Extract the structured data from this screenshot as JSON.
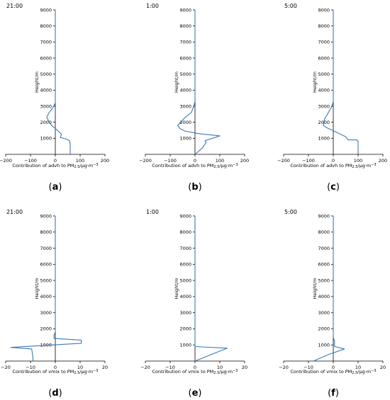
{
  "chart_data": [
    {
      "type": "line",
      "time_label": "21:00",
      "panel_label": "(a)",
      "xlabel": "Contribution of advh to PM",
      "xlabel_sub": "2.5",
      "xlabel_unit": "/µg·m",
      "xlabel_sup": "−3",
      "ylabel": "Height/m",
      "xlim": [
        -200,
        200
      ],
      "ylim": [
        0,
        9000
      ],
      "xticks": [
        "−200",
        "−100",
        "0",
        "100",
        "200"
      ],
      "yticks": [
        "1000",
        "2000",
        "3000",
        "4000",
        "5000",
        "6000",
        "7000",
        "8000",
        "9000"
      ],
      "grid": false,
      "series": [
        {
          "x": [
            60,
            60,
            57,
            45,
            20,
            25,
            5,
            -15,
            -35,
            -25,
            -10,
            0,
            0,
            0,
            0,
            0,
            0
          ],
          "y": [
            0,
            650,
            850,
            950,
            1050,
            1250,
            1550,
            1800,
            2300,
            2600,
            2900,
            3200,
            4000,
            5000,
            6000,
            7000,
            9000
          ]
        }
      ]
    },
    {
      "type": "line",
      "time_label": "1:00",
      "panel_label": "(b)",
      "xlabel": "Contribution of advh to PM",
      "xlabel_sub": "2.5",
      "xlabel_unit": "/µg·m",
      "xlabel_sup": "−3",
      "ylabel": "Height/m",
      "xlim": [
        -200,
        200
      ],
      "ylim": [
        0,
        9000
      ],
      "xticks": [
        "−200",
        "−100",
        "0",
        "100",
        "200"
      ],
      "yticks": [
        "1000",
        "2000",
        "3000",
        "4000",
        "5000",
        "6000",
        "7000",
        "8000",
        "9000"
      ],
      "grid": false,
      "series": [
        {
          "x": [
            0,
            30,
            45,
            40,
            100,
            10,
            -40,
            -60,
            -70,
            -40,
            -15,
            -5,
            0,
            0,
            0,
            0,
            0
          ],
          "y": [
            0,
            400,
            750,
            850,
            1150,
            1300,
            1450,
            1600,
            1800,
            2300,
            2600,
            3000,
            3300,
            4000,
            5000,
            7000,
            9000
          ]
        }
      ]
    },
    {
      "type": "line",
      "time_label": "5:00",
      "panel_label": "(c)",
      "xlabel": "Contribution of advh to PM",
      "xlabel_sub": "2.5",
      "xlabel_unit": "/µg·m",
      "xlabel_sup": "−3",
      "ylabel": "Height/m",
      "xlim": [
        -200,
        200
      ],
      "ylim": [
        0,
        9000
      ],
      "xticks": [
        "−200",
        "−100",
        "0",
        "100",
        "200"
      ],
      "yticks": [
        "1000",
        "2000",
        "3000",
        "4000",
        "5000",
        "6000",
        "7000",
        "8000",
        "9000"
      ],
      "grid": false,
      "series": [
        {
          "x": [
            100,
            100,
            95,
            60,
            50,
            10,
            -25,
            -40,
            -35,
            -20,
            -5,
            0,
            0,
            0,
            0,
            0
          ],
          "y": [
            0,
            800,
            900,
            900,
            1100,
            1400,
            1650,
            1800,
            2200,
            2600,
            3000,
            3300,
            4000,
            5000,
            7000,
            9000
          ]
        }
      ]
    },
    {
      "type": "line",
      "time_label": "21:00",
      "panel_label": "(d)",
      "xlabel": "Contribution of vmix to PM",
      "xlabel_sub": "2.5",
      "xlabel_unit": "/µg·m",
      "xlabel_sup": "−3",
      "ylabel": "Height/m",
      "xlim": [
        -20,
        20
      ],
      "ylim": [
        0,
        9000
      ],
      "xticks": [
        "−20",
        "−10",
        "0",
        "10",
        "20"
      ],
      "yticks": [
        "1000",
        "2000",
        "3000",
        "4000",
        "5000",
        "6000",
        "7000",
        "8000",
        "9000"
      ],
      "grid": false,
      "series": [
        {
          "x": [
            -9,
            -9,
            -9.5,
            -18,
            -1,
            10.5,
            10.5,
            -0.5,
            -0.5,
            0,
            0,
            0,
            0,
            0
          ],
          "y": [
            0,
            200,
            750,
            850,
            1000,
            1100,
            1300,
            1400,
            1600,
            1800,
            3000,
            5000,
            7000,
            9000
          ]
        }
      ]
    },
    {
      "type": "line",
      "time_label": "1:00",
      "panel_label": "(e)",
      "xlabel": "Contribution of vmix to PM",
      "xlabel_sub": "2.5",
      "xlabel_unit": "/µg·m",
      "xlabel_sup": "−3",
      "ylabel": "Height/m",
      "xlim": [
        -20,
        20
      ],
      "ylim": [
        0,
        9000
      ],
      "xticks": [
        "−20",
        "−10",
        "0",
        "10",
        "20"
      ],
      "yticks": [
        "1000",
        "2000",
        "3000",
        "4000",
        "5000",
        "6000",
        "7000",
        "8000",
        "9000"
      ],
      "grid": false,
      "series": [
        {
          "x": [
            0,
            13,
            0,
            0,
            0,
            0,
            0,
            0
          ],
          "y": [
            0,
            800,
            900,
            1200,
            3000,
            5000,
            7000,
            9000
          ]
        }
      ]
    },
    {
      "type": "line",
      "time_label": "5:00",
      "panel_label": "(f)",
      "xlabel": "Contribution of vmix to PM",
      "xlabel_sub": "2.5",
      "xlabel_unit": "/µg·m",
      "xlabel_sup": "−3",
      "ylabel": "Height/m",
      "xlim": [
        -20,
        20
      ],
      "ylim": [
        0,
        9000
      ],
      "xticks": [
        "−20",
        "−10",
        "0",
        "10",
        "20"
      ],
      "yticks": [
        "1000",
        "2000",
        "3000",
        "4000",
        "5000",
        "6000",
        "7000",
        "8000",
        "9000"
      ],
      "grid": false,
      "series": [
        {
          "x": [
            -8,
            -2,
            4.5,
            0.5,
            0.5,
            0,
            0,
            0,
            0,
            0
          ],
          "y": [
            0,
            400,
            750,
            900,
            1200,
            1500,
            3000,
            5000,
            7000,
            9000
          ]
        }
      ]
    }
  ],
  "colors": {
    "line": "#3b7bb5",
    "axis": "#000000",
    "text": "#000000"
  }
}
